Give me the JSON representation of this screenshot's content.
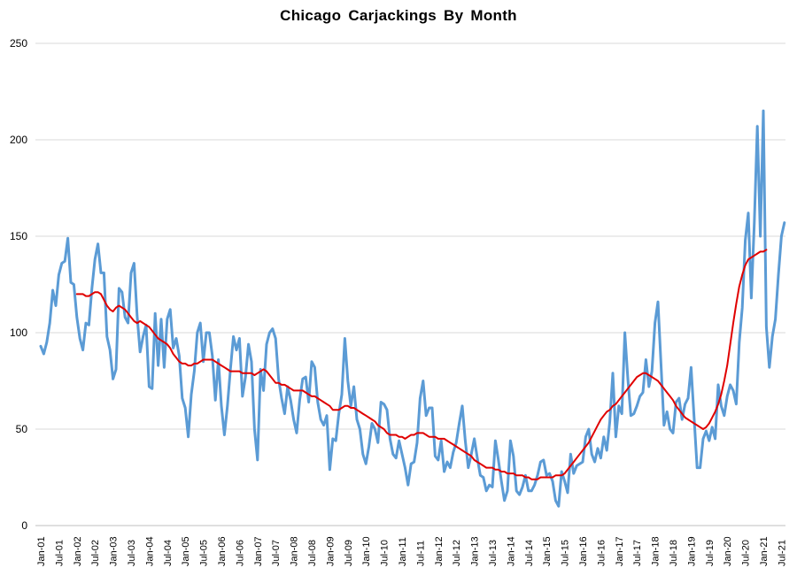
{
  "chart_data": {
    "type": "line",
    "title": "Chicago Carjackings By Month",
    "xlabel": "",
    "ylabel": "",
    "ylim": [
      0,
      250
    ],
    "y_ticks": [
      0,
      50,
      100,
      150,
      200,
      250
    ],
    "x_start": "2001-01",
    "x_tick_labels": [
      "Jan-01",
      "Jul-01",
      "Jan-02",
      "Jul-02",
      "Jan-03",
      "Jul-03",
      "Jan-04",
      "Jul-04",
      "Jan-05",
      "Jul-05",
      "Jan-06",
      "Jul-06",
      "Jan-07",
      "Jul-07",
      "Jan-08",
      "Jul-08",
      "Jan-09",
      "Jul-09",
      "Jan-10",
      "Jul-10",
      "Jan-11",
      "Jul-11",
      "Jan-12",
      "Jul-12",
      "Jan-13",
      "Jul-13",
      "Jan-14",
      "Jul-14",
      "Jan-15",
      "Jul-15",
      "Jan-16",
      "Jul-16",
      "Jan-17",
      "Jul-17",
      "Jan-18",
      "Jul-18",
      "Jan-19",
      "Jul-19",
      "Jan-20",
      "Jul-20",
      "Jan-21",
      "Jul-21"
    ],
    "grid": true,
    "legend": "none",
    "colors": {
      "monthly": "#5b9bd5",
      "moving_average": "#e00000",
      "grid": "#d9d9d9"
    },
    "series": [
      {
        "values": [
          93,
          89,
          95,
          105,
          122,
          114,
          130,
          136,
          137,
          149,
          126,
          125,
          108,
          97,
          91,
          105,
          104,
          123,
          138,
          146,
          131,
          131,
          98,
          91,
          76,
          81,
          123,
          121,
          108,
          105,
          131,
          136,
          109,
          90,
          98,
          104,
          72,
          71,
          110,
          83,
          107,
          82,
          107,
          112,
          92,
          97,
          88,
          66,
          61,
          46,
          68,
          80,
          100,
          105,
          85,
          100,
          100,
          88,
          65,
          86,
          62,
          47,
          62,
          81,
          98,
          91,
          97,
          67,
          77,
          94,
          85,
          50,
          34,
          81,
          70,
          94,
          100,
          102,
          97,
          76,
          66,
          58,
          72,
          65,
          55,
          48,
          65,
          76,
          77,
          64,
          85,
          82,
          64,
          55,
          52,
          57,
          29,
          45,
          44,
          58,
          68,
          97,
          75,
          62,
          72,
          55,
          50,
          37,
          32,
          41,
          53,
          50,
          43,
          64,
          63,
          60,
          45,
          37,
          35,
          44,
          37,
          30,
          21,
          32,
          33,
          43,
          66,
          75,
          57,
          61,
          61,
          36,
          34,
          44,
          28,
          33,
          30,
          38,
          43,
          53,
          62,
          44,
          30,
          37,
          45,
          35,
          26,
          25,
          18,
          21,
          20,
          44,
          34,
          23,
          13,
          18,
          44,
          36,
          18,
          16,
          20,
          26,
          18,
          18,
          21,
          26,
          33,
          34,
          26,
          27,
          23,
          13,
          10,
          28,
          23,
          17,
          37,
          27,
          31,
          32,
          33,
          46,
          50,
          37,
          33,
          40,
          35,
          46,
          39,
          54,
          79,
          46,
          62,
          58,
          100,
          76,
          57,
          58,
          62,
          67,
          69,
          86,
          72,
          80,
          105,
          116,
          84,
          52,
          59,
          50,
          48,
          64,
          66,
          55,
          63,
          66,
          82,
          56,
          30,
          30,
          45,
          49,
          44,
          51,
          45,
          73,
          62,
          57,
          67,
          73,
          70,
          63,
          95,
          113,
          148,
          162,
          118,
          157,
          207,
          150,
          215,
          103,
          82,
          98,
          107,
          130,
          150,
          157
        ]
      },
      {
        "values": [
          null,
          null,
          null,
          null,
          null,
          null,
          null,
          null,
          null,
          null,
          null,
          null,
          120,
          120,
          120,
          119,
          119,
          120,
          121,
          121,
          120,
          117,
          114,
          112,
          111,
          113,
          114,
          113,
          112,
          110,
          108,
          106,
          105,
          106,
          105,
          104,
          103,
          101,
          99,
          97,
          96,
          95,
          94,
          92,
          89,
          87,
          85,
          84,
          84,
          83,
          83,
          84,
          84,
          85,
          86,
          86,
          86,
          86,
          85,
          84,
          83,
          82,
          81,
          80,
          80,
          80,
          80,
          79,
          79,
          79,
          79,
          78,
          79,
          80,
          81,
          80,
          78,
          76,
          74,
          74,
          73,
          73,
          72,
          71,
          70,
          70,
          70,
          70,
          69,
          68,
          67,
          67,
          66,
          65,
          64,
          63,
          62,
          60,
          60,
          60,
          61,
          62,
          62,
          61,
          61,
          60,
          59,
          58,
          57,
          56,
          55,
          54,
          52,
          51,
          50,
          48,
          47,
          47,
          47,
          46,
          46,
          45,
          46,
          47,
          47,
          48,
          48,
          48,
          47,
          46,
          46,
          46,
          45,
          45,
          45,
          44,
          43,
          42,
          41,
          40,
          39,
          38,
          37,
          36,
          34,
          33,
          32,
          31,
          30,
          30,
          30,
          29,
          29,
          28,
          28,
          27,
          27,
          27,
          26,
          26,
          26,
          25,
          25,
          24,
          24,
          24,
          25,
          25,
          25,
          25,
          25,
          26,
          26,
          26,
          27,
          29,
          31,
          33,
          35,
          37,
          39,
          41,
          43,
          46,
          49,
          52,
          55,
          57,
          59,
          60,
          62,
          63,
          65,
          67,
          69,
          71,
          73,
          75,
          77,
          78,
          79,
          79,
          78,
          77,
          76,
          75,
          73,
          71,
          69,
          67,
          65,
          62,
          60,
          58,
          56,
          55,
          54,
          53,
          52,
          51,
          50,
          51,
          53,
          56,
          59,
          63,
          68,
          75,
          83,
          94,
          105,
          115,
          124,
          130,
          135,
          138,
          139,
          140,
          141,
          142,
          142,
          143
        ]
      }
    ]
  }
}
